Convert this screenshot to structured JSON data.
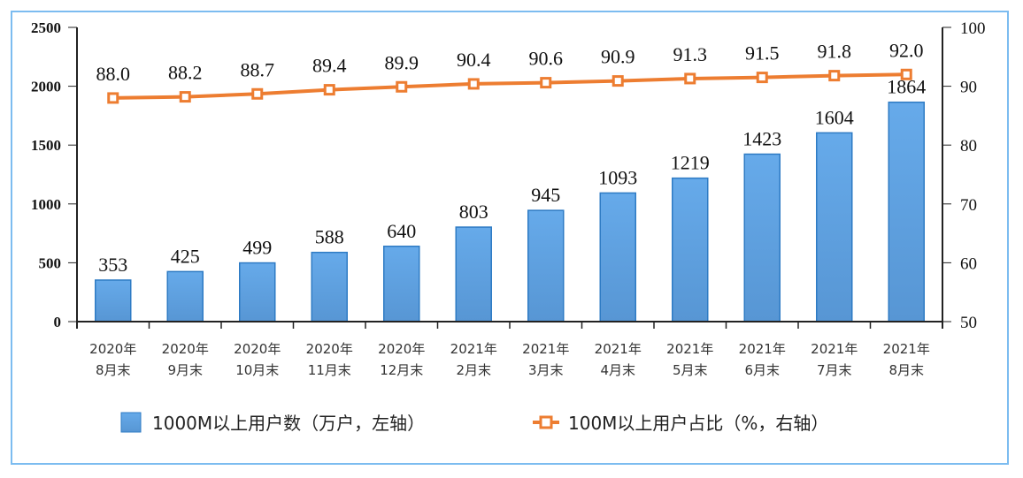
{
  "chart_data": {
    "type": "bar+line",
    "categories": [
      [
        "2020年",
        "8月末"
      ],
      [
        "2020年",
        "9月末"
      ],
      [
        "2020年",
        "10月末"
      ],
      [
        "2020年",
        "11月末"
      ],
      [
        "2020年",
        "12月末"
      ],
      [
        "2021年",
        "2月末"
      ],
      [
        "2021年",
        "3月末"
      ],
      [
        "2021年",
        "4月末"
      ],
      [
        "2021年",
        "5月末"
      ],
      [
        "2021年",
        "6月末"
      ],
      [
        "2021年",
        "7月末"
      ],
      [
        "2021年",
        "8月末"
      ]
    ],
    "series": [
      {
        "name": "1000M以上用户数（万户，左轴）",
        "type": "bar",
        "axis": "left",
        "color": "#5b9bd5",
        "values": [
          353,
          425,
          499,
          588,
          640,
          803,
          945,
          1093,
          1219,
          1423,
          1604,
          1864
        ]
      },
      {
        "name": "100M以上用户占比（%，右轴）",
        "type": "line",
        "axis": "right",
        "color": "#ed7d31",
        "values": [
          88.0,
          88.2,
          88.7,
          89.4,
          89.9,
          90.4,
          90.6,
          90.9,
          91.3,
          91.5,
          91.8,
          92.0
        ]
      }
    ],
    "left_axis": {
      "ylim": [
        0,
        2500
      ],
      "ticks": [
        0,
        500,
        1000,
        1500,
        2000,
        2500
      ]
    },
    "right_axis": {
      "ylim": [
        50,
        100
      ],
      "ticks": [
        50,
        60,
        70,
        80,
        90,
        100
      ]
    },
    "grid": false,
    "legend_position": "bottom"
  }
}
